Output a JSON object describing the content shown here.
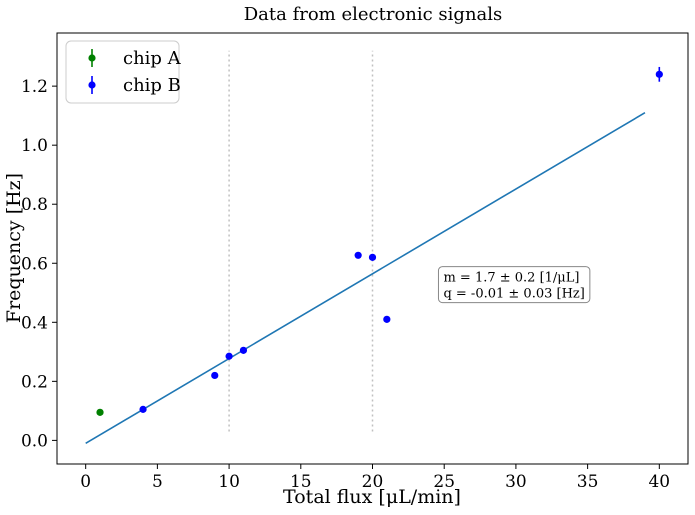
{
  "chart_data": {
    "type": "scatter",
    "title": "Data from electronic signals",
    "xlabel": "Total flux [μL/min]",
    "ylabel": "Frequency [Hz]",
    "xlim": [
      -2,
      42
    ],
    "ylim": [
      -0.08,
      1.38
    ],
    "xticks": [
      0,
      5,
      10,
      15,
      20,
      25,
      30,
      35,
      40
    ],
    "yticks": [
      0.0,
      0.2,
      0.4,
      0.6,
      0.8,
      1.0,
      1.2
    ],
    "grid": false,
    "legend_position": "top-left",
    "series": [
      {
        "name": "chip A",
        "color": "#008000",
        "marker": "circle",
        "errorbars": true,
        "points": [
          {
            "x": 1,
            "y": 0.095,
            "yerr": 0.0
          }
        ]
      },
      {
        "name": "chip B",
        "color": "#0000ff",
        "marker": "circle",
        "errorbars": true,
        "points": [
          {
            "x": 4,
            "y": 0.105,
            "yerr": 0.0
          },
          {
            "x": 9,
            "y": 0.22,
            "yerr": 0.0
          },
          {
            "x": 10,
            "y": 0.285,
            "yerr": 0.0
          },
          {
            "x": 11,
            "y": 0.305,
            "yerr": 0.0
          },
          {
            "x": 19,
            "y": 0.627,
            "yerr": 0.0
          },
          {
            "x": 20,
            "y": 0.62,
            "yerr": 0.0
          },
          {
            "x": 21,
            "y": 0.41,
            "yerr": 0.0
          },
          {
            "x": 40,
            "y": 1.24,
            "yerr": 0.025
          }
        ]
      }
    ],
    "fit_line": {
      "color": "#1f77b4",
      "x": [
        0,
        39
      ],
      "y": [
        -0.01,
        1.11
      ]
    },
    "vertical_lines": [
      {
        "x": 10,
        "y": [
          0.03,
          1.32
        ],
        "color": "#c0c0c0",
        "style": "dotted"
      },
      {
        "x": 20,
        "y": [
          0.03,
          1.32
        ],
        "color": "#c0c0c0",
        "style": "dotted"
      }
    ],
    "annotation": {
      "x": 24.6,
      "y": 0.565,
      "lines": [
        "m = 1.7 ± 0.2 [1/μL]",
        "q = -0.01 ± 0.03 [Hz]"
      ]
    }
  }
}
